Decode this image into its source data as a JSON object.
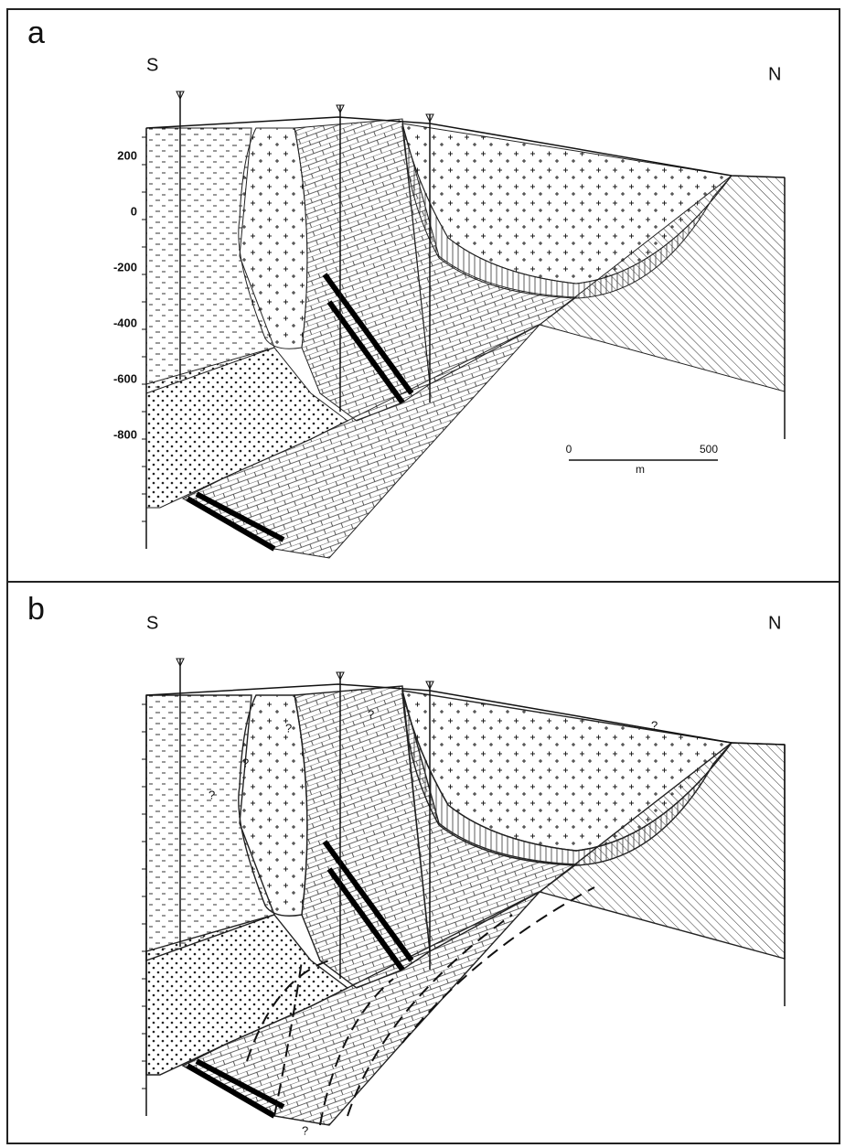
{
  "panels": [
    {
      "label": "a",
      "left": "S",
      "right": "N",
      "depth_labels": [
        200,
        0,
        -200,
        -400,
        -600,
        -800
      ],
      "scale_bar": {
        "start": "0",
        "end": "500",
        "unit": "m"
      }
    },
    {
      "label": "b",
      "left": "S",
      "right": "N",
      "queries": [
        "?",
        "?",
        "?",
        "?",
        "?",
        "?"
      ]
    }
  ]
}
